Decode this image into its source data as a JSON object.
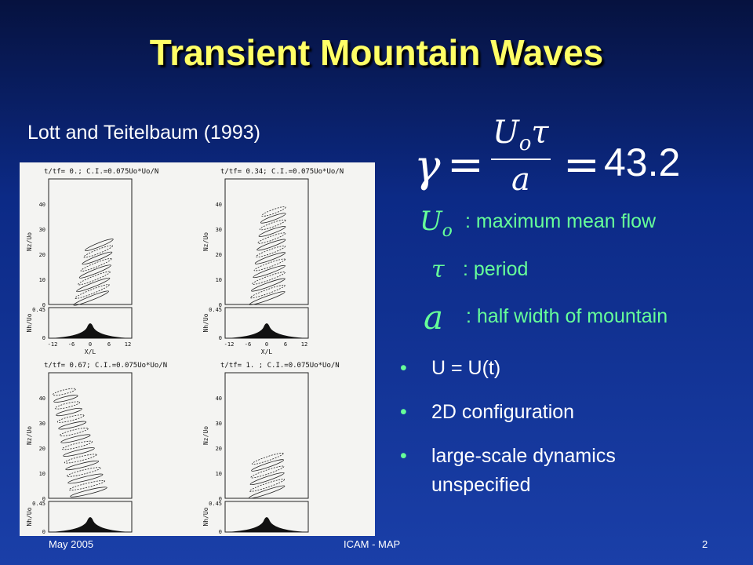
{
  "title": "Transient Mountain Waves",
  "citation": "Lott and Teitelbaum (1993)",
  "equation": {
    "lhs": "γ",
    "num_base": "U",
    "num_sub": "o",
    "num_tau": "τ",
    "den": "a",
    "rhs": "43.2"
  },
  "definitions": [
    {
      "symbol": "U",
      "sub": "o",
      "text": ": maximum mean flow"
    },
    {
      "symbol": "τ",
      "text": ": period"
    },
    {
      "symbol": "a",
      "text": ": half width of mountain"
    }
  ],
  "bullets": [
    "U = U(t)",
    "2D configuration",
    "large-scale dynamics unspecified"
  ],
  "figure": {
    "panels": [
      {
        "header": "t/tf= 0.;  C.I.=0.075Uo*Uo/N"
      },
      {
        "header": "t/tf= 0.34;  C.I.=0.075Uo*Uo/N"
      },
      {
        "header": "t/tf= 0.67;  C.I.=0.075Uo*Uo/N"
      },
      {
        "header": "t/tf= 1.   ;  C.I.=0.075Uo*Uo/N"
      }
    ],
    "y_label": "Nz/Uo",
    "h_label": "Nh/Uo",
    "x_label": "X/L",
    "y_ticks": [
      "0",
      "10",
      "20",
      "30",
      "40"
    ],
    "h_ticks": [
      "0",
      "0.45"
    ],
    "x_ticks": [
      "-12",
      "-6",
      "0",
      "6",
      "12"
    ]
  },
  "footer": {
    "left": "May 2005",
    "center": "ICAM - MAP",
    "right": "2"
  }
}
